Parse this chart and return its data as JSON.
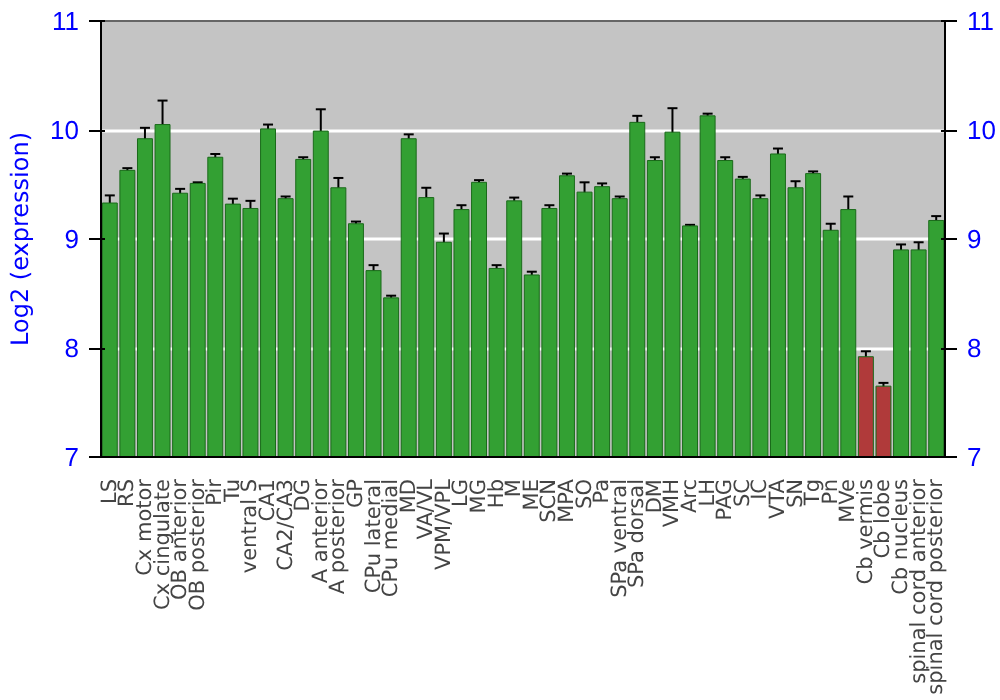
{
  "chart_data": {
    "type": "bar",
    "ylabel": "Log2 (expression)",
    "categories": [
      "LS",
      "RS",
      "Cx motor",
      "Cx cingulate",
      "OB anterior",
      "OB posterior",
      "Pir",
      "Tu",
      "ventral S",
      "CA1",
      "CA2/CA3",
      "DG",
      "A anterior",
      "A posterior",
      "GP",
      "CPu lateral",
      "CPu medial",
      "MD",
      "VA/VL",
      "VPM/VPL",
      "LG",
      "MG",
      "Hb",
      "M",
      "ME",
      "SCN",
      "MPA",
      "SO",
      "Pa",
      "SPa ventral",
      "SPa dorsal",
      "DM",
      "VMH",
      "Arc",
      "LH",
      "PAG",
      "SC",
      "IC",
      "VTA",
      "SN",
      "Tg",
      "Pn",
      "MVe",
      "Cb vermis",
      "Cb lobe",
      "Cb nucleus",
      "spinal cord anterior",
      "spinal cord posterior"
    ],
    "values": [
      9.33,
      9.63,
      9.92,
      10.05,
      9.42,
      9.51,
      9.75,
      9.32,
      9.28,
      10.01,
      9.37,
      9.73,
      9.99,
      9.47,
      9.14,
      8.71,
      8.46,
      9.92,
      9.38,
      8.97,
      9.27,
      9.52,
      8.73,
      9.35,
      8.67,
      9.28,
      9.58,
      9.43,
      9.48,
      9.37,
      10.07,
      9.72,
      9.98,
      9.12,
      10.13,
      9.72,
      9.55,
      9.37,
      9.78,
      9.47,
      9.6,
      9.08,
      9.27,
      7.92,
      7.65,
      8.9,
      8.9,
      9.17
    ],
    "errors": [
      0.07,
      0.02,
      0.1,
      0.22,
      0.04,
      0.01,
      0.03,
      0.05,
      0.07,
      0.04,
      0.02,
      0.02,
      0.2,
      0.09,
      0.02,
      0.05,
      0.02,
      0.04,
      0.09,
      0.08,
      0.04,
      0.02,
      0.03,
      0.03,
      0.03,
      0.03,
      0.02,
      0.09,
      0.03,
      0.02,
      0.06,
      0.03,
      0.22,
      0.01,
      0.02,
      0.03,
      0.02,
      0.03,
      0.05,
      0.06,
      0.02,
      0.06,
      0.12,
      0.05,
      0.03,
      0.05,
      0.07,
      0.04
    ],
    "colors": [
      "#33a033",
      "#33a033",
      "#33a033",
      "#33a033",
      "#33a033",
      "#33a033",
      "#33a033",
      "#33a033",
      "#33a033",
      "#33a033",
      "#33a033",
      "#33a033",
      "#33a033",
      "#33a033",
      "#33a033",
      "#33a033",
      "#33a033",
      "#33a033",
      "#33a033",
      "#33a033",
      "#33a033",
      "#33a033",
      "#33a033",
      "#33a033",
      "#33a033",
      "#33a033",
      "#33a033",
      "#33a033",
      "#33a033",
      "#33a033",
      "#33a033",
      "#33a033",
      "#33a033",
      "#33a033",
      "#33a033",
      "#33a033",
      "#33a033",
      "#33a033",
      "#33a033",
      "#33a033",
      "#33a033",
      "#33a033",
      "#33a033",
      "#b03a3a",
      "#b03a3a",
      "#33a033",
      "#33a033",
      "#33a033"
    ],
    "ylim": [
      7,
      11
    ],
    "yticks": [
      7,
      8,
      9,
      10,
      11
    ],
    "y2lim": [
      7,
      11
    ],
    "y2ticks": [
      7,
      8,
      9,
      10,
      11
    ],
    "grid": "y"
  }
}
